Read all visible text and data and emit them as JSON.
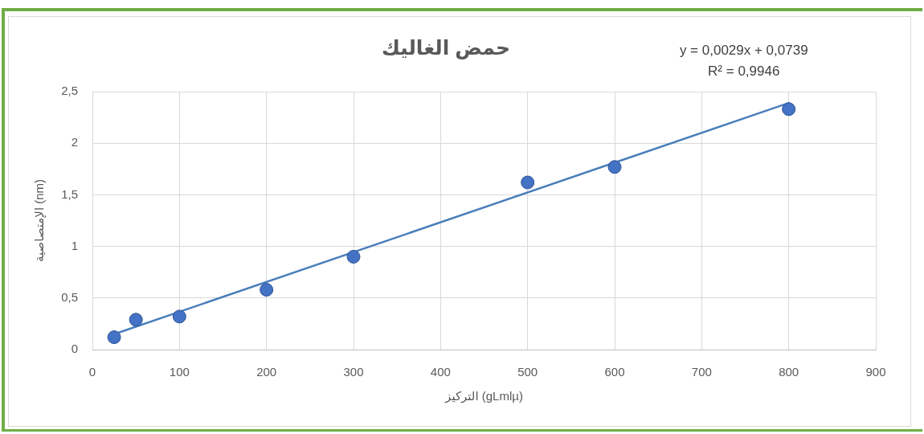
{
  "chart_data": {
    "type": "scatter",
    "title": "حمض الغاليك",
    "xlabel": "التركيز (gLmlµ)",
    "ylabel": "الإمتصاصية (nm)",
    "annotations": [
      "y = 0,0029x + 0,0739",
      "R² = 0,9946"
    ],
    "x": [
      25,
      50,
      100,
      200,
      300,
      500,
      600,
      800
    ],
    "series": [
      {
        "color": "#4472c4",
        "values": [
          0.12,
          0.29,
          0.32,
          0.58,
          0.9,
          1.62,
          1.77,
          2.33
        ]
      },
      {
        "type": "line",
        "color": "#4a7ebb",
        "x": [
          25,
          800
        ],
        "values": [
          0.15,
          2.39
        ],
        "marker": "none"
      }
    ],
    "xlim": [
      0,
      900
    ],
    "xticks": [
      0,
      100,
      200,
      300,
      400,
      500,
      600,
      700,
      800,
      900
    ],
    "ylim": [
      0,
      2.5
    ],
    "yticks": [
      0,
      {
        "value": 0.5,
        "label": "0,5"
      },
      1,
      {
        "value": 1.5,
        "label": "1,5"
      },
      2,
      {
        "value": 2.5,
        "label": "2,5"
      }
    ],
    "grid": true,
    "marker": "circle",
    "line_style": "solid"
  }
}
